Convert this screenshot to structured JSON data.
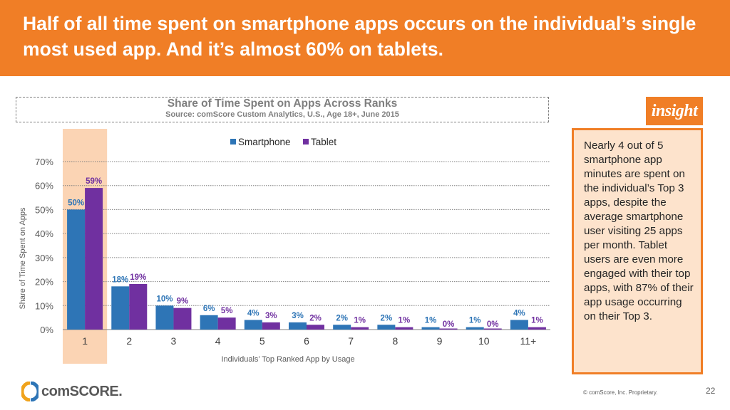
{
  "headline": "Half of all time spent on smartphone apps occurs on the individual’s single most used app. And it’s almost 60% on tablets.",
  "insight": {
    "tag": "insight",
    "text": "Nearly 4 out of 5 smartphone app minutes are spent on the individual’s Top 3 apps, despite the average smartphone user visiting 25 apps per month. Tablet users are even more engaged with their top apps, with 87% of their app usage occurring on their Top 3."
  },
  "footer": {
    "logo_text": "comSCORE.",
    "copyright": "© comScore, Inc. Proprietary.",
    "page_number": "22"
  },
  "colors": {
    "header_bg": "#f07e26",
    "smartphone": "#2e75b6",
    "tablet": "#7030a0",
    "highlight": "#fbd4b4",
    "insight_bg": "#fde3cc"
  },
  "chart_data": {
    "type": "bar",
    "title": "Share of Time Spent on Apps Across Ranks",
    "subtitle": "Source: comScore Custom Analytics, U.S., Age 18+, June 2015",
    "xlabel": "Individuals’ Top Ranked App by Usage",
    "ylabel": "Share of Time Spent on Apps",
    "categories": [
      "1",
      "2",
      "3",
      "4",
      "5",
      "6",
      "7",
      "8",
      "9",
      "10",
      "11+"
    ],
    "series": [
      {
        "name": "Smartphone",
        "values": [
          50,
          18,
          10,
          6,
          4,
          3,
          2,
          2,
          1,
          1,
          4
        ],
        "labels": [
          "50%",
          "18%",
          "10%",
          "6%",
          "4%",
          "3%",
          "2%",
          "2%",
          "1%",
          "1%",
          "4%"
        ]
      },
      {
        "name": "Tablet",
        "values": [
          59,
          19,
          9,
          5,
          3,
          2,
          1,
          1,
          0,
          0,
          1
        ],
        "labels": [
          "59%",
          "19%",
          "9%",
          "5%",
          "3%",
          "2%",
          "1%",
          "1%",
          "0%",
          "0%",
          "1%"
        ]
      }
    ],
    "ylim": [
      0,
      70
    ],
    "yticks": [
      0,
      10,
      20,
      30,
      40,
      50,
      60,
      70
    ],
    "ytick_labels": [
      "0%",
      "10%",
      "20%",
      "30%",
      "40%",
      "50%",
      "60%",
      "70%"
    ],
    "grid": true,
    "legend": "top",
    "highlighted_category": "1"
  }
}
